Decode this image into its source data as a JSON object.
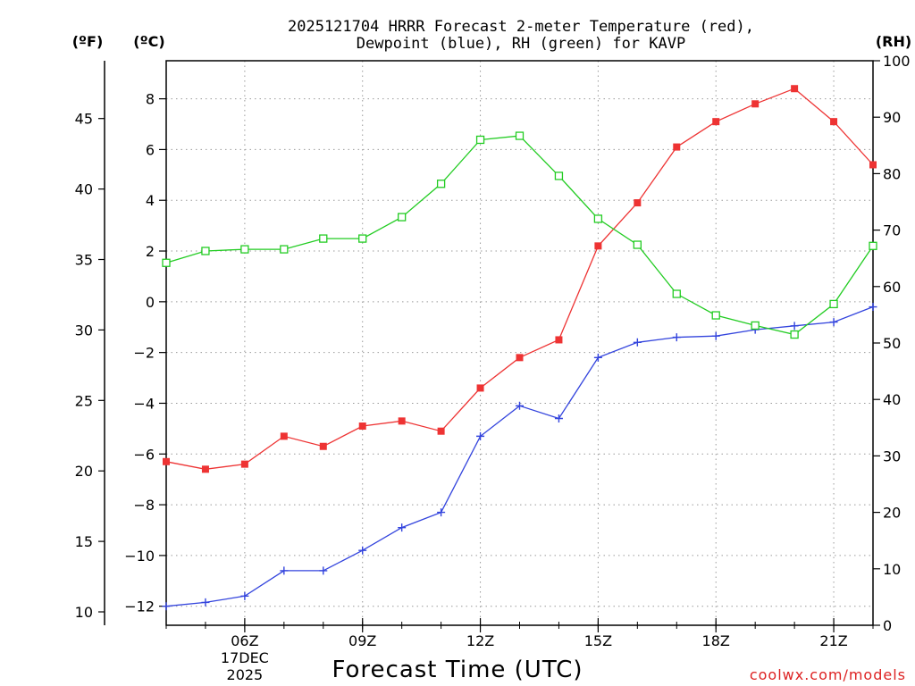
{
  "chart_data": {
    "type": "line",
    "title_line1": "2025121704 HRRR Forecast 2-meter Temperature (red),",
    "title_line2": "Dewpoint (blue), RH (green) for KAVP",
    "xlabel": "Forecast Time (UTC)",
    "credit": "coolwx.com/models",
    "units": {
      "fahrenheit": "(ºF)",
      "celsius": "(ºC)",
      "rh": "(RH)"
    },
    "x_hours": [
      4,
      5,
      6,
      7,
      8,
      9,
      10,
      11,
      12,
      13,
      14,
      15,
      16,
      17,
      18,
      19,
      20,
      21,
      22
    ],
    "x_range": [
      4,
      22
    ],
    "x_ticks": [
      {
        "hour": 6,
        "label": "06Z",
        "sub1": "17DEC",
        "sub2": "2025"
      },
      {
        "hour": 9,
        "label": "09Z"
      },
      {
        "hour": 12,
        "label": "12Z"
      },
      {
        "hour": 15,
        "label": "15Z"
      },
      {
        "hour": 18,
        "label": "18Z"
      },
      {
        "hour": 21,
        "label": "21Z"
      }
    ],
    "celsius_axis": {
      "range": [
        -12.75,
        9.5
      ],
      "ticks": [
        -12,
        -10,
        -8,
        -6,
        -4,
        -2,
        0,
        2,
        4,
        6,
        8
      ]
    },
    "fahrenheit_axis": {
      "ticks": [
        10,
        15,
        20,
        25,
        30,
        35,
        40,
        45
      ]
    },
    "rh_axis": {
      "range": [
        0,
        100
      ],
      "ticks": [
        0,
        10,
        20,
        30,
        40,
        50,
        60,
        70,
        80,
        90,
        100
      ]
    },
    "series": [
      {
        "name": "2-meter Temperature",
        "color": "#ee3333",
        "axis": "celsius",
        "marker": "filled-square",
        "values": [
          -6.3,
          -6.6,
          -6.4,
          -5.3,
          -5.7,
          -4.9,
          -4.7,
          -5.1,
          -3.4,
          -2.2,
          -1.5,
          2.2,
          3.9,
          6.1,
          7.1,
          7.8,
          8.4,
          7.1,
          5.4
        ]
      },
      {
        "name": "Dewpoint",
        "color": "#3344dd",
        "axis": "celsius",
        "marker": "plus",
        "values": [
          -12.0,
          -11.85,
          -11.6,
          -10.6,
          -10.6,
          -9.8,
          -8.9,
          -8.3,
          -5.3,
          -4.1,
          -4.6,
          -2.2,
          -1.6,
          -1.4,
          -1.35,
          -1.1,
          -0.95,
          -0.8,
          -0.2
        ]
      },
      {
        "name": "Relative Humidity",
        "color": "#22cc22",
        "axis": "rh",
        "marker": "open-square",
        "values": [
          64.2,
          66.3,
          66.6,
          66.6,
          68.5,
          68.5,
          72.3,
          78.2,
          86.0,
          86.7,
          79.6,
          72.0,
          67.4,
          58.7,
          54.9,
          53.1,
          51.5,
          56.9,
          67.2
        ]
      }
    ]
  }
}
